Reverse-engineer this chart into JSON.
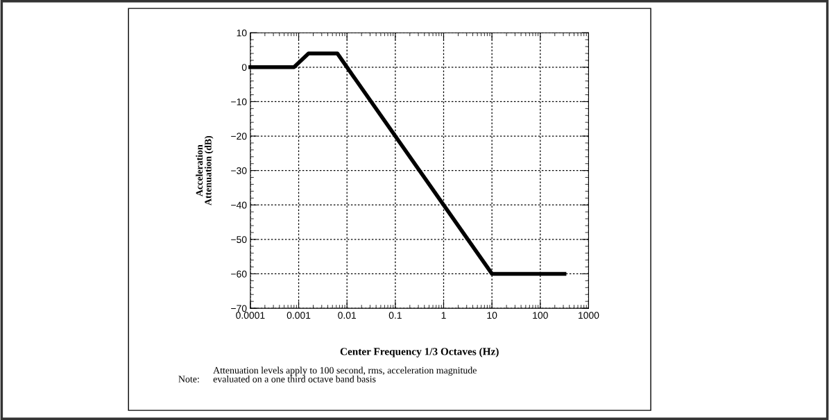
{
  "chart_data": {
    "type": "line",
    "xlabel": "Center Frequency 1/3 Octaves (Hz)",
    "ylabel": "Acceleration\nAttenuation (dB)",
    "annotations": [
      "Note:",
      "Attenuation levels apply to 100 second, rms, acceleration magnitude\nevaluated on a one third octave band basis"
    ],
    "x": [
      0.0001,
      0.0008,
      0.0016,
      0.0063,
      10,
      316
    ],
    "series": [
      {
        "color": "#000000",
        "values": [
          0,
          0,
          4,
          4,
          -60,
          -60
        ]
      }
    ],
    "log": "x",
    "xlim": [
      0.0001,
      1000
    ],
    "xticks": [
      {
        "value": 0.0001,
        "label": "0.0001"
      },
      {
        "value": 0.001,
        "label": "0.001"
      },
      {
        "value": 0.01,
        "label": "0.01"
      },
      {
        "value": 0.1,
        "label": "0.1"
      },
      1,
      10,
      100,
      1000
    ],
    "ylim": [
      -70,
      10
    ],
    "yticks": [
      -70,
      -60,
      -50,
      -40,
      -30,
      -20,
      -10,
      0,
      10
    ],
    "grid": true,
    "marker": "none",
    "line_style": "solid"
  }
}
